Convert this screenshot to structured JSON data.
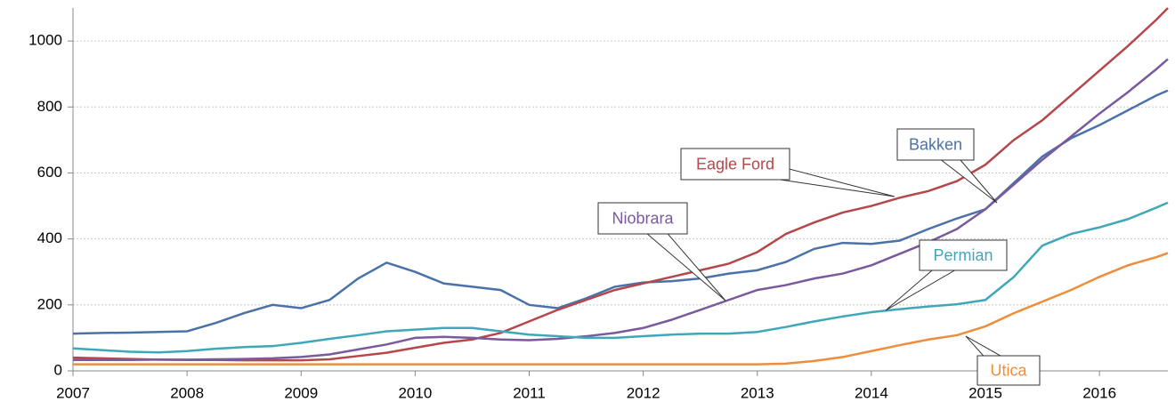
{
  "chart_data": {
    "type": "line",
    "x": [
      2007,
      2007.25,
      2007.5,
      2007.75,
      2008,
      2008.25,
      2008.5,
      2008.75,
      2009,
      2009.25,
      2009.5,
      2009.75,
      2010,
      2010.25,
      2010.5,
      2010.75,
      2011,
      2011.25,
      2011.5,
      2011.75,
      2012,
      2012.25,
      2012.5,
      2012.75,
      2013,
      2013.25,
      2013.5,
      2013.75,
      2014,
      2014.25,
      2014.5,
      2014.75,
      2015,
      2015.25,
      2015.5,
      2015.75,
      2016,
      2016.25,
      2016.5,
      2016.6
    ],
    "series": [
      {
        "name": "Bakken",
        "color": "#4a72a8",
        "values": [
          113,
          115,
          116,
          118,
          120,
          145,
          175,
          200,
          190,
          215,
          280,
          328,
          300,
          265,
          255,
          245,
          200,
          190,
          220,
          255,
          268,
          272,
          280,
          295,
          305,
          330,
          370,
          388,
          385,
          395,
          430,
          462,
          490,
          570,
          650,
          705,
          745,
          790,
          835,
          850
        ]
      },
      {
        "name": "Eagle Ford",
        "color": "#b5474a",
        "values": [
          40,
          38,
          36,
          34,
          33,
          33,
          32,
          32,
          32,
          35,
          45,
          55,
          70,
          85,
          95,
          115,
          150,
          185,
          215,
          245,
          265,
          285,
          305,
          325,
          360,
          415,
          450,
          480,
          500,
          525,
          545,
          575,
          625,
          700,
          760,
          835,
          910,
          985,
          1065,
          1100
        ]
      },
      {
        "name": "Niobrara",
        "color": "#7a5a9c",
        "values": [
          33,
          33,
          33,
          34,
          34,
          35,
          36,
          38,
          42,
          50,
          65,
          80,
          100,
          103,
          100,
          95,
          93,
          97,
          105,
          115,
          130,
          155,
          185,
          215,
          245,
          260,
          280,
          295,
          320,
          355,
          390,
          430,
          490,
          565,
          640,
          710,
          780,
          845,
          915,
          945
        ]
      },
      {
        "name": "Permian",
        "color": "#3fa8b8",
        "values": [
          68,
          63,
          58,
          56,
          60,
          67,
          72,
          75,
          85,
          97,
          108,
          120,
          125,
          130,
          130,
          120,
          110,
          105,
          100,
          100,
          105,
          110,
          113,
          113,
          118,
          133,
          150,
          165,
          178,
          187,
          195,
          202,
          215,
          285,
          380,
          415,
          435,
          460,
          495,
          510
        ]
      },
      {
        "name": "Utica",
        "color": "#ee8d3a",
        "values": [
          20,
          20,
          20,
          20,
          20,
          20,
          20,
          20,
          20,
          20,
          20,
          20,
          20,
          20,
          20,
          20,
          20,
          20,
          20,
          20,
          20,
          20,
          20,
          20,
          20,
          22,
          30,
          42,
          60,
          78,
          95,
          108,
          135,
          175,
          210,
          245,
          285,
          320,
          345,
          357
        ]
      }
    ],
    "xlim": [
      2007,
      2016.6
    ],
    "xticks": [
      2007,
      2008,
      2009,
      2010,
      2011,
      2012,
      2013,
      2014,
      2015,
      2016
    ],
    "ylim": [
      0,
      1100
    ],
    "yticks": [
      0,
      200,
      400,
      600,
      800,
      1000
    ],
    "grid": true
  }
}
